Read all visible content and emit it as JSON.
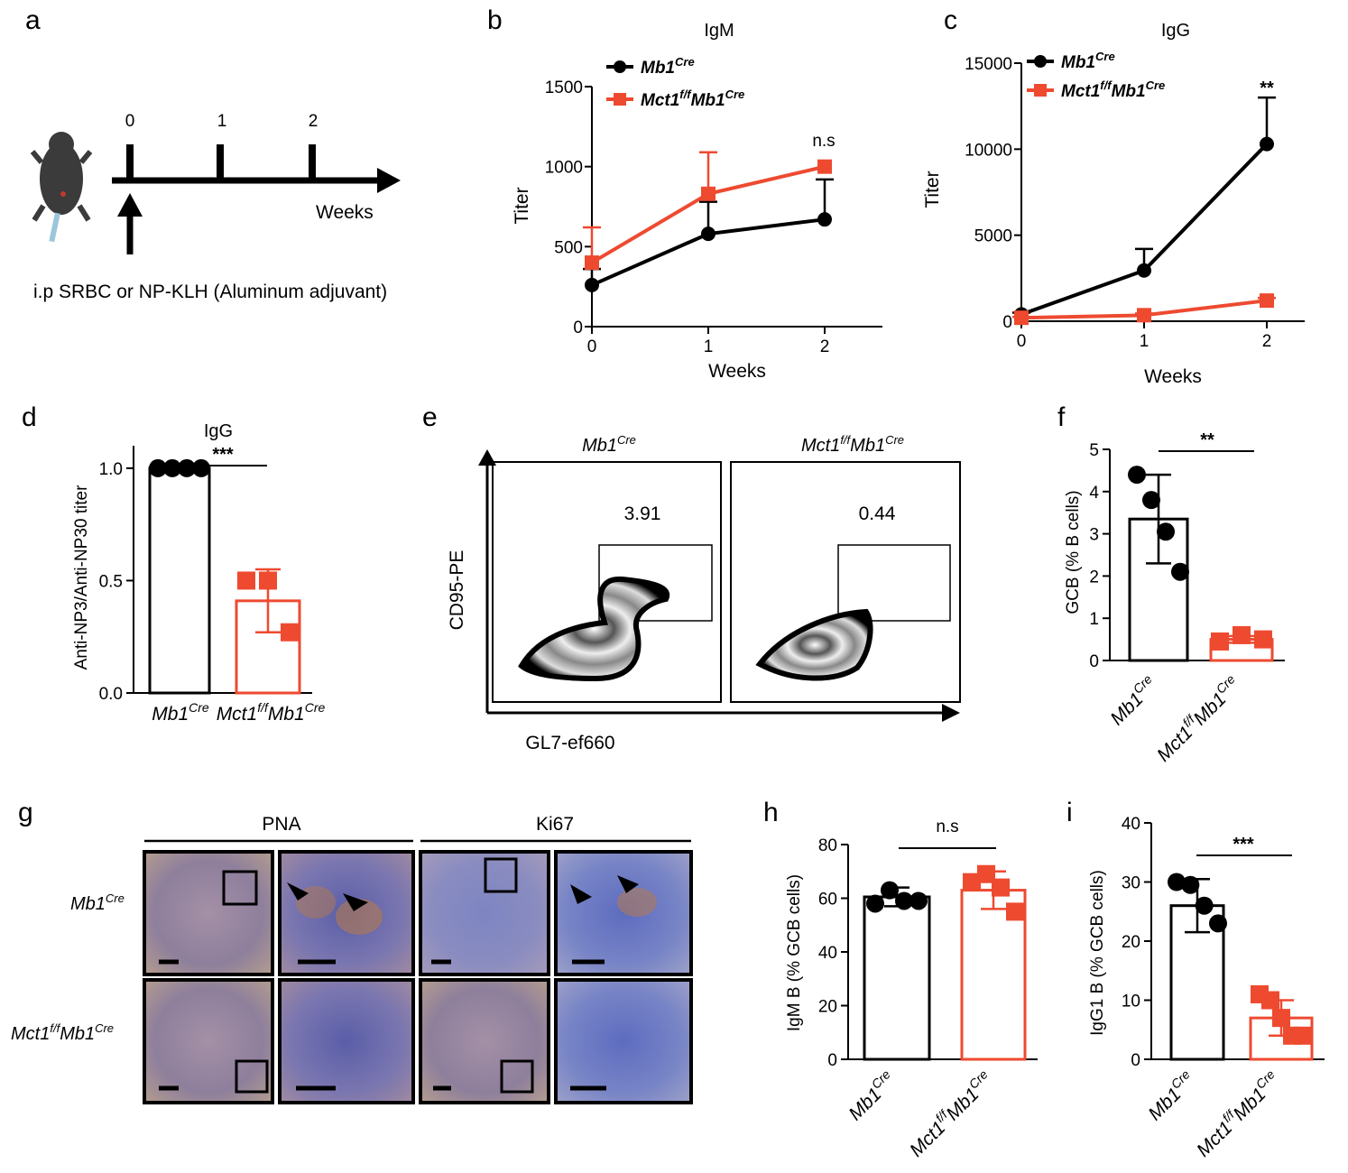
{
  "colors": {
    "wt": "#000000",
    "ko": "#ee4a30"
  },
  "panels": {
    "a": {
      "label": "a",
      "timepoints": [
        "0",
        "1",
        "2"
      ],
      "axis_label": "Weeks",
      "protocol": "i.p  SRBC or NP-KLH (Aluminum adjuvant)",
      "icon": "mouse-icon"
    },
    "b": {
      "label": "b",
      "title": "IgM",
      "xlabel": "Weeks",
      "ylabel": "Titer",
      "sig": "n.s",
      "legend": {
        "wt": "Mb1",
        "wt_sup": "Cre",
        "ko": "Mct1",
        "ko_sup": "f/f",
        "ko2": "Mb1",
        "ko2_sup": "Cre"
      }
    },
    "c": {
      "label": "c",
      "title": "IgG",
      "xlabel": "Weeks",
      "ylabel": "Titer",
      "sig": "**",
      "legend": {
        "wt": "Mb1",
        "wt_sup": "Cre",
        "ko": "Mct1",
        "ko_sup": "f/f",
        "ko2": "Mb1",
        "ko2_sup": "Cre"
      }
    },
    "d": {
      "label": "d",
      "title": "IgG",
      "ylabel": "Anti-NP3/Anti-NP30 titer",
      "sig": "***"
    },
    "e": {
      "label": "e",
      "xlabel": "GL7-ef660",
      "ylabel": "CD95-PE",
      "left_title": "Mb1",
      "left_sup": "Cre",
      "right_title": "Mct1",
      "right_sup": "f/f",
      "right_title2": "Mb1",
      "right_sup2": "Cre",
      "left_value": "3.91",
      "right_value": "0.44"
    },
    "f": {
      "label": "f",
      "ylabel": "GCB (% B cells)",
      "sig": "**"
    },
    "g": {
      "label": "g",
      "col1": "PNA",
      "col2": "Ki67",
      "row1": "Mb1",
      "row1_sup": "Cre",
      "row2": "Mct1",
      "row2_sup": "f/f",
      "row2b": "Mb1",
      "row2b_sup": "Cre"
    },
    "h": {
      "label": "h",
      "ylabel": "IgM B (% GCB cells)",
      "sig": "n.s"
    },
    "i": {
      "label": "i",
      "ylabel": "IgG1 B (% GCB cells)",
      "sig": "***"
    }
  },
  "group_labels": {
    "wt": "Mb1",
    "wt_sup": "Cre",
    "ko": "Mct1",
    "ko_sup": "f/f",
    "ko2": "Mb1",
    "ko2_sup": "Cre"
  },
  "chart_data": [
    {
      "id": "b",
      "type": "line",
      "title": "IgM",
      "xlabel": "Weeks",
      "ylabel": "Titer",
      "x": [
        0,
        1,
        2
      ],
      "xticks": [
        "0",
        "1",
        "2"
      ],
      "ylim": [
        0,
        1500
      ],
      "yticks": [
        "0",
        "500",
        "1000",
        "1500"
      ],
      "series": [
        {
          "name": "Mb1Cre",
          "values": [
            260,
            580,
            670
          ],
          "errors": [
            100,
            200,
            250
          ]
        },
        {
          "name": "Mct1f/fMb1Cre",
          "values": [
            400,
            830,
            1000
          ],
          "errors": [
            220,
            260,
            0
          ]
        }
      ]
    },
    {
      "id": "c",
      "type": "line",
      "title": "IgG",
      "xlabel": "Weeks",
      "ylabel": "Titer",
      "x": [
        0,
        1,
        2
      ],
      "xticks": [
        "0",
        "1",
        "2"
      ],
      "ylim": [
        0,
        15000
      ],
      "yticks": [
        "0",
        "5000",
        "10000",
        "15000"
      ],
      "series": [
        {
          "name": "Mb1Cre",
          "values": [
            400,
            2950,
            10300
          ],
          "errors": [
            100,
            1250,
            2700
          ]
        },
        {
          "name": "Mct1f/fMb1Cre",
          "values": [
            200,
            350,
            1200
          ],
          "errors": [
            50,
            100,
            150
          ]
        }
      ]
    },
    {
      "id": "d",
      "type": "bar",
      "title": "IgG",
      "ylabel": "Anti-NP3/Anti-NP30 titer",
      "ylim": [
        0,
        1.1
      ],
      "yticks": [
        "0.0",
        "0.5",
        "1.0"
      ],
      "groups": [
        {
          "name": "Mb1Cre",
          "mean": 1.0,
          "sd": 0.0,
          "points": [
            1,
            1,
            1,
            1
          ]
        },
        {
          "name": "Mct1f/fMb1Cre",
          "mean": 0.41,
          "sd": 0.14,
          "points": [
            0.5,
            0.5,
            0.27
          ]
        }
      ]
    },
    {
      "id": "f",
      "type": "bar",
      "ylabel": "GCB (% B cells)",
      "ylim": [
        0,
        5
      ],
      "yticks": [
        "0",
        "1",
        "2",
        "3",
        "4",
        "5"
      ],
      "groups": [
        {
          "name": "Mb1Cre",
          "mean": 3.35,
          "sd": 1.05,
          "points": [
            4.4,
            3.8,
            3.05,
            2.1
          ]
        },
        {
          "name": "Mct1f/fMb1Cre",
          "mean": 0.5,
          "sd": 0.08,
          "points": [
            0.45,
            0.6,
            0.5
          ]
        }
      ]
    },
    {
      "id": "h",
      "type": "bar",
      "ylabel": "IgM B (% GCB cells)",
      "ylim": [
        0,
        80
      ],
      "yticks": [
        "0",
        "20",
        "40",
        "60",
        "80"
      ],
      "groups": [
        {
          "name": "Mb1Cre",
          "mean": 60.5,
          "sd": 3.5,
          "points": [
            58,
            63,
            59,
            59
          ]
        },
        {
          "name": "Mct1f/fMb1Cre",
          "mean": 63,
          "sd": 7,
          "points": [
            66,
            69,
            64,
            55
          ]
        }
      ]
    },
    {
      "id": "i",
      "type": "bar",
      "ylabel": "IgG1 B (% GCB cells)",
      "ylim": [
        0,
        40
      ],
      "yticks": [
        "0",
        "10",
        "20",
        "30",
        "40"
      ],
      "groups": [
        {
          "name": "Mb1Cre",
          "mean": 26,
          "sd": 4.5,
          "points": [
            30,
            29.5,
            26,
            23
          ]
        },
        {
          "name": "Mct1f/fMb1Cre",
          "mean": 7,
          "sd": 3,
          "points": [
            11,
            10,
            7,
            4,
            4
          ]
        }
      ]
    }
  ]
}
